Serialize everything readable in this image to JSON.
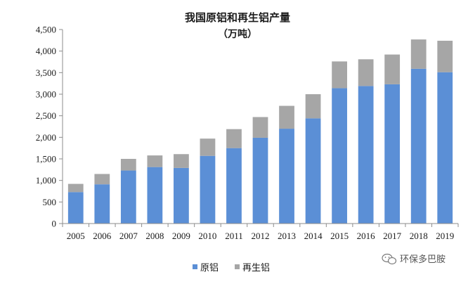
{
  "chart_data": {
    "type": "bar",
    "stacked": true,
    "title": "我国原铝和再生铝产量",
    "subtitle": "（万吨）",
    "categories": [
      "2005",
      "2006",
      "2007",
      "2008",
      "2009",
      "2010",
      "2011",
      "2012",
      "2013",
      "2014",
      "2015",
      "2016",
      "2017",
      "2018",
      "2019"
    ],
    "series": [
      {
        "name": "原铝",
        "color": "#5B8FD6",
        "values": [
          730,
          910,
          1230,
          1310,
          1290,
          1570,
          1750,
          1990,
          2200,
          2440,
          3140,
          3190,
          3230,
          3590,
          3510
        ]
      },
      {
        "name": "再生铝",
        "color": "#A6A6A6",
        "values": [
          190,
          240,
          270,
          270,
          320,
          400,
          440,
          480,
          530,
          560,
          620,
          620,
          690,
          680,
          730
        ]
      }
    ],
    "ylim": [
      0,
      4500
    ],
    "yticks": [
      0,
      500,
      1000,
      1500,
      2000,
      2500,
      3000,
      3500,
      4000,
      4500
    ],
    "ytick_labels": [
      "0",
      "500",
      "1,000",
      "1,500",
      "2,000",
      "2,500",
      "3,000",
      "3,500",
      "4,000",
      "4,500"
    ],
    "xlabel": "",
    "ylabel": "",
    "grid": false,
    "legend_position": "bottom"
  },
  "watermark": {
    "text": "环保多巴胺",
    "icon": "wechat-icon"
  }
}
